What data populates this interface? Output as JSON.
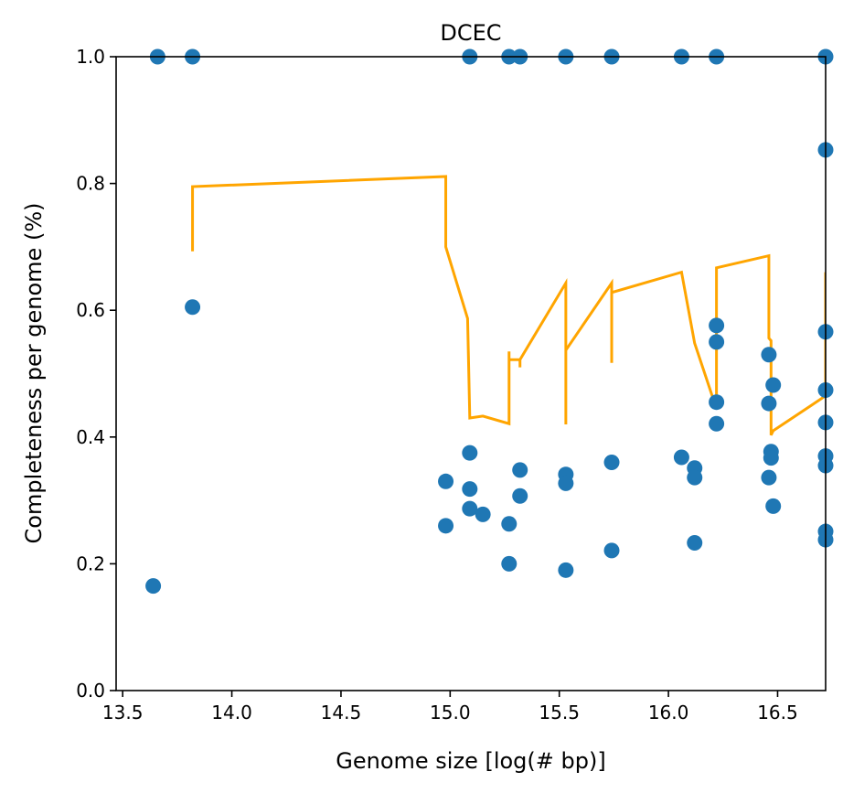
{
  "chart_data": {
    "type": "scatter",
    "title": "DCEC",
    "xlabel": "Genome size [log(# bp)]",
    "ylabel": "Completeness per genome (%)",
    "xlim": [
      13.47,
      16.72
    ],
    "ylim": [
      0.0,
      1.0
    ],
    "x_ticks": [
      13.5,
      14.0,
      14.5,
      15.0,
      15.5,
      16.0,
      16.5
    ],
    "x_tick_labels": [
      "13.5",
      "14.0",
      "14.5",
      "15.0",
      "15.5",
      "16.0",
      "16.5"
    ],
    "y_ticks": [
      0.0,
      0.2,
      0.4,
      0.6,
      0.8,
      1.0
    ],
    "y_tick_labels": [
      "0.0",
      "0.2",
      "0.4",
      "0.6",
      "0.8",
      "1.0"
    ],
    "grid": false,
    "colors": {
      "points": "#1f77b4",
      "line": "#ffa500"
    },
    "points": [
      [
        13.64,
        0.165
      ],
      [
        13.66,
        1.0
      ],
      [
        13.82,
        1.0
      ],
      [
        13.82,
        0.605
      ],
      [
        14.98,
        0.33
      ],
      [
        14.98,
        0.26
      ],
      [
        15.09,
        1.0
      ],
      [
        15.09,
        0.375
      ],
      [
        15.09,
        0.318
      ],
      [
        15.09,
        0.287
      ],
      [
        15.15,
        0.278
      ],
      [
        15.27,
        1.0
      ],
      [
        15.27,
        0.263
      ],
      [
        15.27,
        0.2
      ],
      [
        15.32,
        1.0
      ],
      [
        15.32,
        0.348
      ],
      [
        15.32,
        0.307
      ],
      [
        15.53,
        1.0
      ],
      [
        15.53,
        0.341
      ],
      [
        15.53,
        0.327
      ],
      [
        15.53,
        0.19
      ],
      [
        15.74,
        1.0
      ],
      [
        15.74,
        0.36
      ],
      [
        15.74,
        0.221
      ],
      [
        16.06,
        1.0
      ],
      [
        16.06,
        0.368
      ],
      [
        16.12,
        0.351
      ],
      [
        16.12,
        0.336
      ],
      [
        16.12,
        0.233
      ],
      [
        16.22,
        1.0
      ],
      [
        16.22,
        0.576
      ],
      [
        16.22,
        0.55
      ],
      [
        16.22,
        0.455
      ],
      [
        16.22,
        0.421
      ],
      [
        16.46,
        0.53
      ],
      [
        16.46,
        0.453
      ],
      [
        16.46,
        0.336
      ],
      [
        16.47,
        0.377
      ],
      [
        16.47,
        0.367
      ],
      [
        16.48,
        0.482
      ],
      [
        16.48,
        0.291
      ],
      [
        16.72,
        1.0
      ],
      [
        16.72,
        0.853
      ],
      [
        16.72,
        0.566
      ],
      [
        16.72,
        0.474
      ],
      [
        16.72,
        0.423
      ],
      [
        16.72,
        0.37
      ],
      [
        16.72,
        0.355
      ],
      [
        16.72,
        0.251
      ],
      [
        16.72,
        0.238
      ]
    ],
    "line": [
      [
        13.82,
        0.693
      ],
      [
        13.82,
        0.725
      ],
      [
        13.82,
        0.795
      ],
      [
        14.98,
        0.811
      ],
      [
        14.98,
        0.7
      ],
      [
        15.08,
        0.587
      ],
      [
        15.09,
        0.43
      ],
      [
        15.15,
        0.433
      ],
      [
        15.27,
        0.421
      ],
      [
        15.27,
        0.535
      ],
      [
        15.27,
        0.51
      ],
      [
        15.27,
        0.522
      ],
      [
        15.32,
        0.522
      ],
      [
        15.32,
        0.51
      ],
      [
        15.32,
        0.522
      ],
      [
        15.53,
        0.643
      ],
      [
        15.53,
        0.42
      ],
      [
        15.53,
        0.537
      ],
      [
        15.74,
        0.643
      ],
      [
        15.74,
        0.517
      ],
      [
        15.74,
        0.628
      ],
      [
        16.06,
        0.66
      ],
      [
        16.12,
        0.548
      ],
      [
        16.21,
        0.455
      ],
      [
        16.22,
        0.457
      ],
      [
        16.22,
        0.667
      ],
      [
        16.46,
        0.686
      ],
      [
        16.46,
        0.556
      ],
      [
        16.47,
        0.552
      ],
      [
        16.47,
        0.403
      ],
      [
        16.48,
        0.41
      ],
      [
        16.72,
        0.465
      ],
      [
        16.72,
        0.66
      ]
    ]
  }
}
